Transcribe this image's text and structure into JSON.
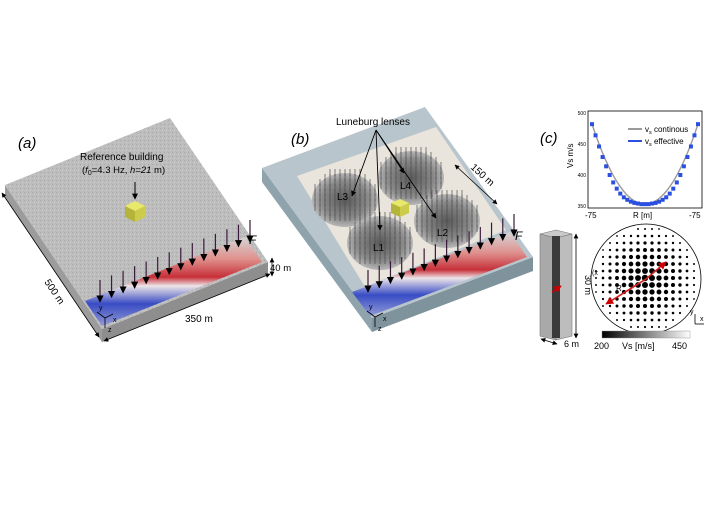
{
  "panel_a": {
    "label": "(a)",
    "reference_building": {
      "line1": "Reference building",
      "line2_parts": [
        "(",
        "f",
        "0",
        "=4.3 Hz, ",
        "h=21",
        " m)"
      ]
    },
    "dim_500": "500 m",
    "dim_350": "350 m",
    "dim_40": "40 m",
    "force_label": "F",
    "axes": {
      "x": "x",
      "y": "y",
      "z": "z"
    }
  },
  "panel_b": {
    "label": "(b)",
    "lenses_title": "Luneburg lenses",
    "lenses": [
      "L1",
      "L2",
      "L3",
      "L4"
    ],
    "dim_150": "150 m",
    "force_label": "F",
    "axes": {
      "x": "x",
      "y": "y",
      "z": "z"
    }
  },
  "panel_c": {
    "label": "(c)",
    "chart_data": {
      "type": "line",
      "ylabel": "Vs m/s",
      "xlabel": "R [m]",
      "x_tick_labels": [
        "-75",
        "-75"
      ],
      "y_tick_labels": [
        "500",
        "450",
        "400",
        "350"
      ],
      "ylim": [
        350,
        500
      ],
      "series": [
        {
          "name": "v_s continous",
          "style": "gray solid"
        },
        {
          "name": "v_s effective",
          "style": "blue markers",
          "x": [
            -75,
            -70,
            -65,
            -60,
            -55,
            -50,
            -45,
            -40,
            -35,
            -30,
            -25,
            -20,
            -15,
            -10,
            -5,
            0,
            5,
            10,
            15,
            20,
            25,
            30,
            35,
            40,
            45,
            50,
            55,
            60,
            65,
            70,
            75
          ],
          "y": [
            482,
            464,
            446,
            429,
            414,
            400,
            388,
            378,
            370,
            364,
            360,
            357,
            355,
            354,
            353,
            353,
            353,
            354,
            355,
            357,
            360,
            364,
            370,
            378,
            388,
            400,
            414,
            429,
            446,
            464,
            482
          ]
        }
      ],
      "legend_parts": [
        {
          "v": "v",
          "sub": "s",
          "rest": " continous"
        },
        {
          "v": "v",
          "sub": "s",
          "rest": " effective"
        }
      ]
    },
    "column_height": "30 m",
    "column_width": "6 m",
    "lens_plan": {
      "radius_label": "R",
      "corner_label": "(x"
    },
    "colorbar": {
      "min": "200",
      "label": "Vs [m/s]",
      "max": "450"
    },
    "axes": {
      "x": "x",
      "y": "y"
    }
  }
}
